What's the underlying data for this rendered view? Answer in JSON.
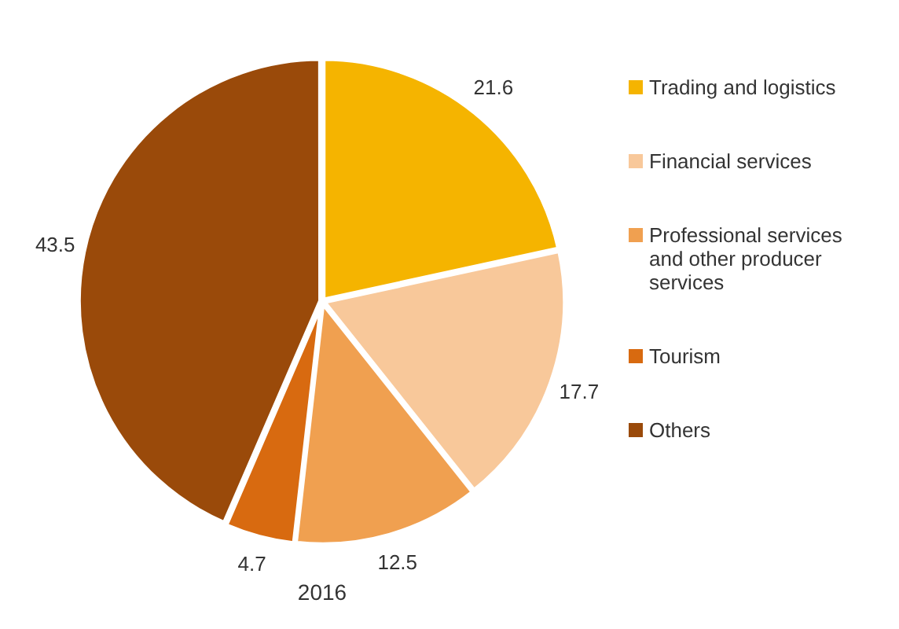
{
  "chart_data": {
    "type": "pie",
    "title": "2016",
    "categories": [
      "Trading and logistics",
      "Financial services",
      "Professional services and other producer services",
      "Tourism",
      "Others"
    ],
    "values": [
      21.6,
      17.7,
      12.5,
      4.7,
      43.5
    ],
    "colors": [
      "#f5b400",
      "#f8c89a",
      "#f0a050",
      "#d86a10",
      "#9a4a0a"
    ],
    "data_labels": true,
    "legend": "right"
  }
}
